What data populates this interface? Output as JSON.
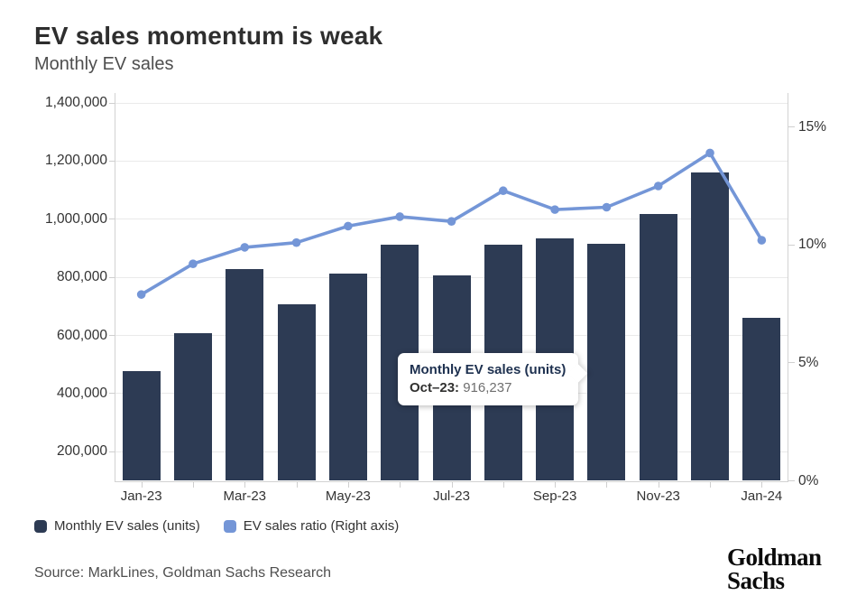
{
  "header": {
    "title": "EV sales momentum is weak",
    "subtitle": "Monthly EV sales"
  },
  "tooltip": {
    "title": "Monthly EV sales (units)",
    "label": "Oct–23:",
    "value": "916,237"
  },
  "footer": {
    "source": "Source: MarkLines, Goldman Sachs Research",
    "logo_line1": "Goldman",
    "logo_line2": "Sachs"
  },
  "chart_data": {
    "type": "bar+line",
    "title": "EV sales momentum is weak",
    "subtitle": "Monthly EV sales",
    "categories": [
      "Jan-23",
      "Feb-23",
      "Mar-23",
      "Apr-23",
      "May-23",
      "Jun-23",
      "Jul-23",
      "Aug-23",
      "Sep-23",
      "Oct-23",
      "Nov-23",
      "Dec-23",
      "Jan-24"
    ],
    "x_tick_labels": [
      "Jan-23",
      "Mar-23",
      "May-23",
      "Jul-23",
      "Sep-23",
      "Nov-23",
      "Jan-24"
    ],
    "series": [
      {
        "name": "Monthly EV sales (units)",
        "type": "bar",
        "axis": "left",
        "color": "#2d3b54",
        "values": [
          478000,
          608000,
          829000,
          706000,
          813000,
          913000,
          808000,
          913000,
          934000,
          916237,
          1017000,
          1162000,
          662000
        ]
      },
      {
        "name": "EV sales ratio (Right axis)",
        "type": "line",
        "axis": "right",
        "color": "#7496d7",
        "values": [
          7.9,
          9.2,
          9.9,
          10.1,
          10.8,
          11.2,
          11.0,
          12.3,
          11.5,
          11.6,
          12.5,
          13.9,
          10.2
        ]
      }
    ],
    "left_axis": {
      "min": 100000,
      "max": 1400000,
      "ticks": [
        {
          "value": 200000,
          "label": "200,000"
        },
        {
          "value": 400000,
          "label": "400,000"
        },
        {
          "value": 600000,
          "label": "600,000"
        },
        {
          "value": 800000,
          "label": "800,000"
        },
        {
          "value": 1000000,
          "label": "1,000,000"
        },
        {
          "value": 1200000,
          "label": "1,200,000"
        },
        {
          "value": 1400000,
          "label": "1,400,000"
        }
      ]
    },
    "right_axis": {
      "min": 0,
      "max": 15,
      "ticks": [
        {
          "value": 0,
          "label": "0%"
        },
        {
          "value": 5,
          "label": "5%"
        },
        {
          "value": 10,
          "label": "10%"
        },
        {
          "value": 15,
          "label": "15%"
        }
      ]
    },
    "grid": "horizontal",
    "legend_position": "bottom-left",
    "annotated_point": {
      "category": "Oct-23",
      "series": "Monthly EV sales (units)",
      "value": 916237
    }
  }
}
